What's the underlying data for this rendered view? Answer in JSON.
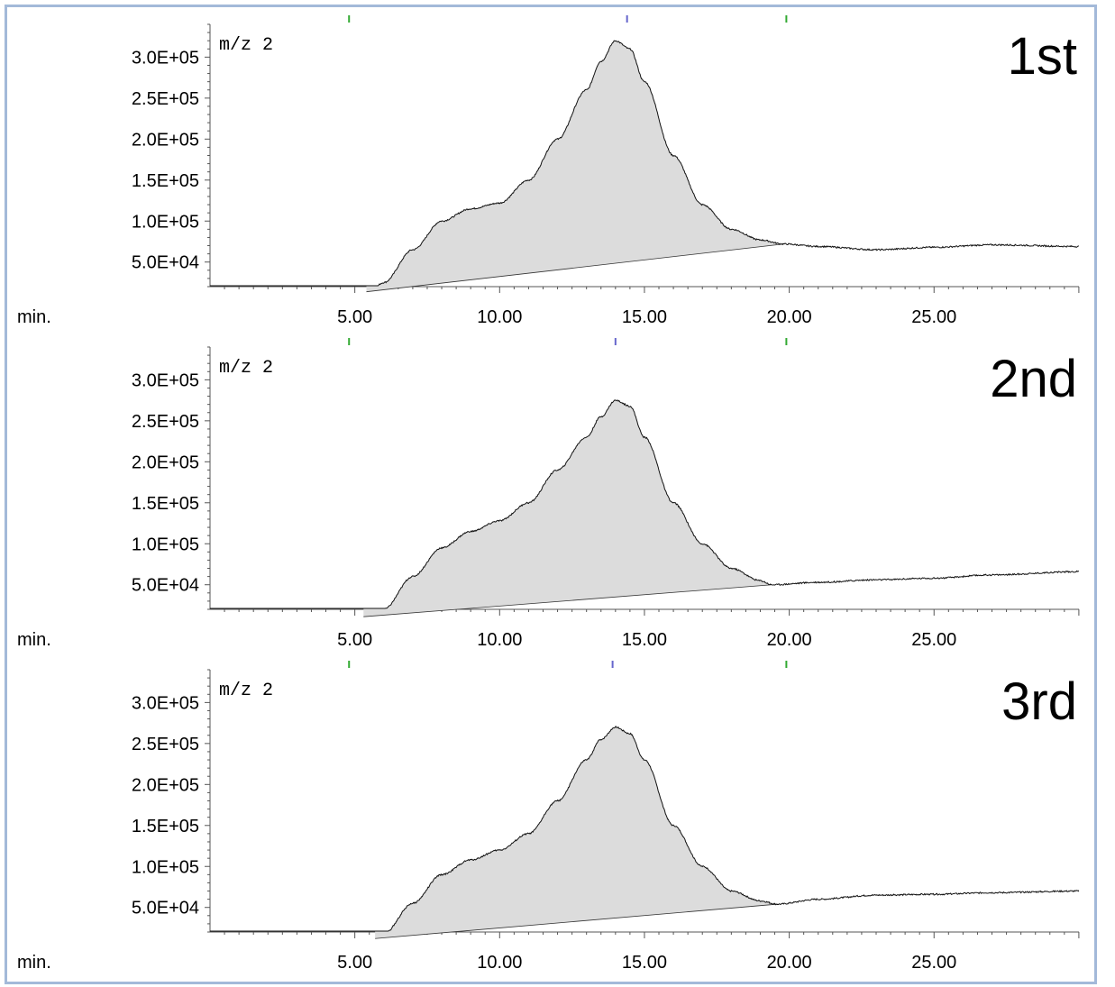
{
  "chart_data": [
    {
      "type": "area",
      "run_label": "1st",
      "trace_label": "m/z 2",
      "xunit": "min.",
      "xlim": [
        0,
        30
      ],
      "ylim": [
        10000,
        340000
      ],
      "xticks": [
        5,
        10,
        15,
        20,
        25
      ],
      "xtick_labels": [
        "5.00",
        "10.00",
        "15.00",
        "20.00",
        "25.00"
      ],
      "yticks": [
        50000,
        100000,
        150000,
        200000,
        250000,
        300000
      ],
      "ytick_labels": [
        "5.0E+04",
        "1.0E+05",
        "1.5E+05",
        "2.0E+05",
        "2.5E+05",
        "3.0E+05"
      ],
      "markers": [
        {
          "x": 4.8,
          "color": "#33aa33"
        },
        {
          "x": 14.4,
          "color": "#6666cc"
        },
        {
          "x": 19.9,
          "color": "#33aa33"
        }
      ],
      "integration_start": 5.4,
      "integration_end": 19.8,
      "x": [
        0,
        1,
        2,
        3,
        4,
        5,
        5.5,
        6,
        7,
        8,
        9,
        10,
        11,
        12,
        13,
        13.5,
        14,
        14.5,
        15,
        16,
        17,
        18,
        19,
        19.8,
        21,
        23,
        25,
        27,
        30
      ],
      "y": [
        19000,
        16000,
        12000,
        11000,
        11000,
        11500,
        14000,
        25000,
        65000,
        100000,
        115000,
        122000,
        150000,
        200000,
        260000,
        295000,
        320000,
        310000,
        270000,
        180000,
        120000,
        90000,
        77000,
        72000,
        69000,
        65000,
        68000,
        71000,
        69000
      ]
    },
    {
      "type": "area",
      "run_label": "2nd",
      "trace_label": "m/z 2",
      "xunit": "min.",
      "xlim": [
        0,
        30
      ],
      "ylim": [
        10000,
        340000
      ],
      "xticks": [
        5,
        10,
        15,
        20,
        25
      ],
      "xtick_labels": [
        "5.00",
        "10.00",
        "15.00",
        "20.00",
        "25.00"
      ],
      "yticks": [
        50000,
        100000,
        150000,
        200000,
        250000,
        300000
      ],
      "ytick_labels": [
        "5.0E+04",
        "1.0E+05",
        "1.5E+05",
        "2.0E+05",
        "2.5E+05",
        "3.0E+05"
      ],
      "markers": [
        {
          "x": 4.8,
          "color": "#33aa33"
        },
        {
          "x": 14.0,
          "color": "#6666cc"
        },
        {
          "x": 19.9,
          "color": "#33aa33"
        }
      ],
      "integration_start": 5.3,
      "integration_end": 19.4,
      "x": [
        0,
        1,
        2,
        3,
        4,
        5,
        5.3,
        6,
        7,
        8,
        9,
        10,
        11,
        12,
        13,
        13.5,
        14,
        14.5,
        15,
        16,
        17,
        18,
        19,
        19.4,
        21,
        23,
        25,
        27,
        30
      ],
      "y": [
        12000,
        11000,
        10500,
        10500,
        10500,
        10500,
        11000,
        20000,
        60000,
        95000,
        115000,
        128000,
        150000,
        190000,
        230000,
        255000,
        275000,
        268000,
        230000,
        150000,
        100000,
        70000,
        55000,
        50000,
        53000,
        56000,
        58000,
        62000,
        66000
      ]
    },
    {
      "type": "area",
      "run_label": "3rd",
      "trace_label": "m/z 2",
      "xunit": "min.",
      "xlim": [
        0,
        30
      ],
      "ylim": [
        10000,
        340000
      ],
      "xticks": [
        5,
        10,
        15,
        20,
        25
      ],
      "xtick_labels": [
        "5.00",
        "10.00",
        "15.00",
        "20.00",
        "25.00"
      ],
      "yticks": [
        50000,
        100000,
        150000,
        200000,
        250000,
        300000
      ],
      "ytick_labels": [
        "5.0E+04",
        "1.0E+05",
        "1.5E+05",
        "2.0E+05",
        "2.5E+05",
        "3.0E+05"
      ],
      "markers": [
        {
          "x": 4.8,
          "color": "#33aa33"
        },
        {
          "x": 13.9,
          "color": "#6666cc"
        },
        {
          "x": 19.9,
          "color": "#33aa33"
        }
      ],
      "integration_start": 5.7,
      "integration_end": 19.6,
      "x": [
        0,
        1,
        2,
        3,
        4,
        5,
        5.7,
        6,
        7,
        8,
        9,
        10,
        11,
        12,
        13,
        13.5,
        14,
        14.5,
        15,
        16,
        17,
        18,
        19,
        19.6,
        21,
        23,
        25,
        27,
        30
      ],
      "y": [
        15000,
        13000,
        11000,
        11000,
        11000,
        11000,
        12000,
        18000,
        55000,
        90000,
        108000,
        120000,
        140000,
        180000,
        230000,
        255000,
        270000,
        262000,
        230000,
        150000,
        100000,
        70000,
        58000,
        54000,
        60000,
        65000,
        66000,
        68000,
        70000
      ]
    }
  ]
}
